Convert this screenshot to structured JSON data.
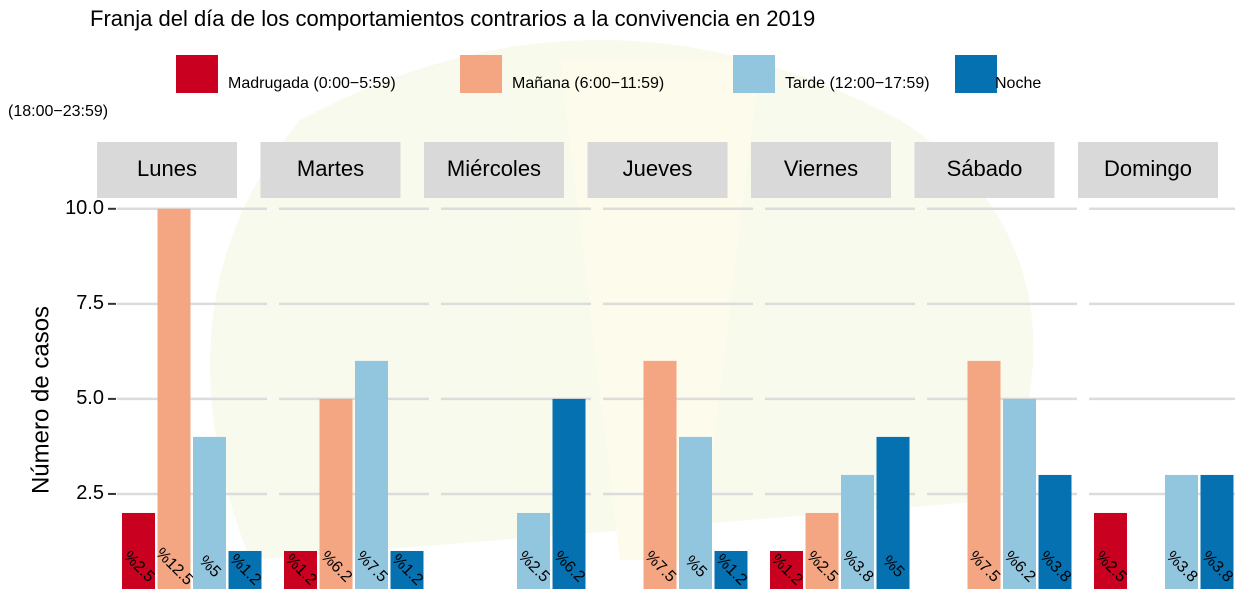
{
  "chart_data": {
    "type": "bar",
    "title": "Franja del día de los comportamientos contrarios a la convivencia en 2019",
    "y_label": "Número de casos",
    "facets": [
      "Lunes",
      "Martes",
      "Miércoles",
      "Jueves",
      "Viernes",
      "Sábado",
      "Domingo"
    ],
    "series": [
      {
        "name": "Madrugada (0:00−5:59)",
        "color": "#CA0020",
        "values": [
          2,
          1,
          null,
          null,
          1,
          null,
          2
        ],
        "percent_labels": [
          "%2.5",
          "%1.2",
          null,
          null,
          "%1.2",
          null,
          "%2.5"
        ]
      },
      {
        "name": "Mañana (6:00−11:59)",
        "color": "#F4A582",
        "values": [
          10,
          5,
          null,
          6,
          2,
          6,
          null
        ],
        "percent_labels": [
          "%12.5",
          "%6.2",
          null,
          "%7.5",
          "%2.5",
          "%7.5",
          null
        ]
      },
      {
        "name": "Tarde (12:00−17:59)",
        "color": "#92C5DE",
        "values": [
          4,
          6,
          2,
          4,
          3,
          5,
          3
        ],
        "percent_labels": [
          "%5",
          "%7.5",
          "%2.5",
          "%5",
          "%3.8",
          "%6.2",
          "%3.8"
        ]
      },
      {
        "name": "Noche",
        "color": "#0571B0",
        "values": [
          1,
          1,
          5,
          1,
          4,
          3,
          3
        ],
        "percent_labels": [
          "%1.2",
          "%1.2",
          "%6.2",
          "%1.2",
          "%5",
          "%3.8",
          "%3.8"
        ]
      }
    ],
    "legend_note": "(18:00−23:59)",
    "ylim": [
      0,
      10.1
    ],
    "yticks": [
      {
        "value": 2.5,
        "label": "2.5"
      },
      {
        "value": 5,
        "label": "5.0"
      },
      {
        "value": 7.5,
        "label": "7.5"
      },
      {
        "value": 10,
        "label": "10.0"
      }
    ],
    "grid": true
  }
}
